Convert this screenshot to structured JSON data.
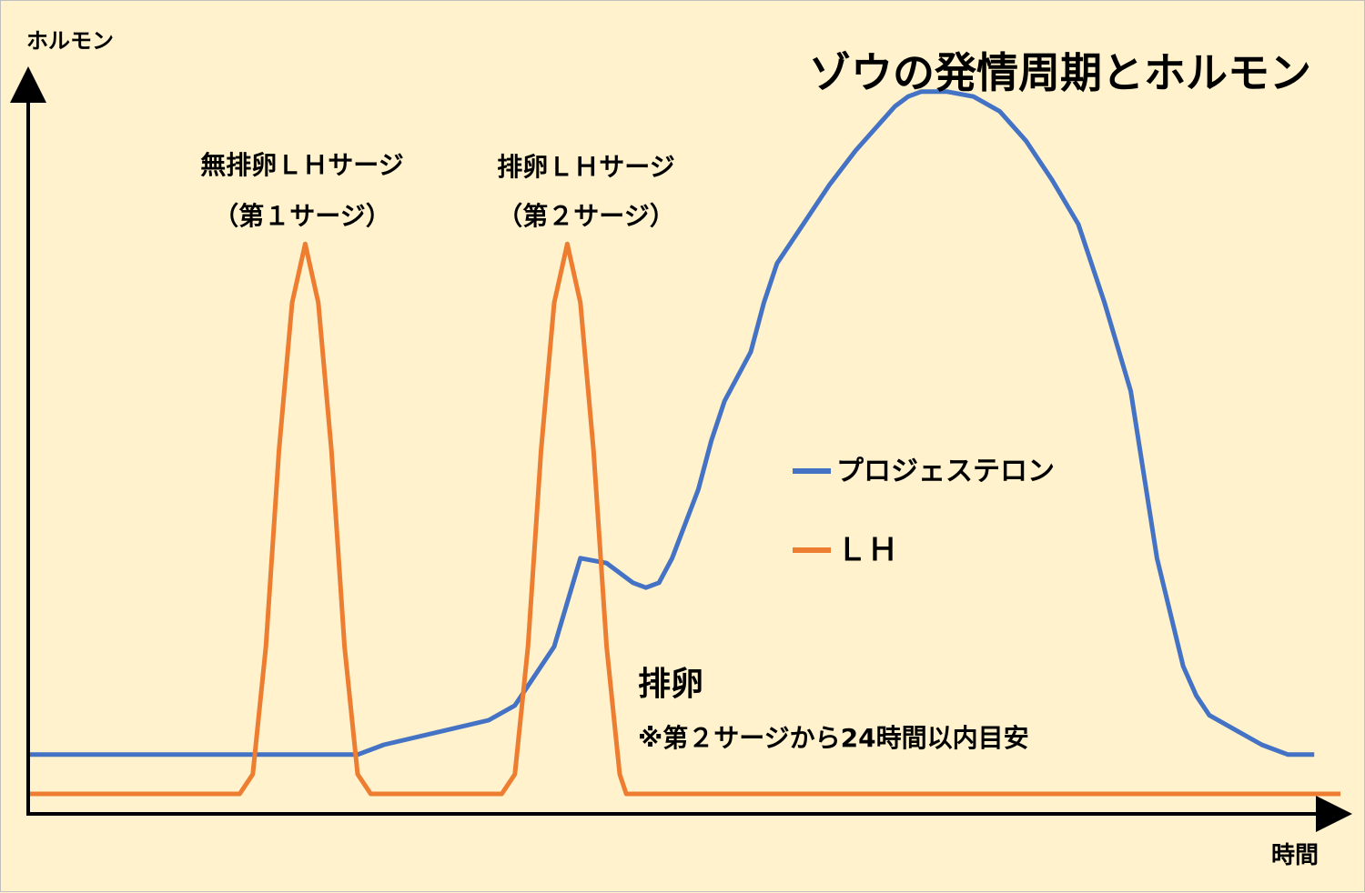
{
  "chart_data": {
    "type": "line",
    "title": "ゾウの発情周期とホルモン",
    "ylabel": "ホルモン",
    "xlabel": "時間",
    "legend": "right",
    "grid": false,
    "series": [
      {
        "name": "プロジェステロン",
        "color": "#4472c4",
        "points": [
          [
            0,
            8
          ],
          [
            25,
            8
          ],
          [
            27,
            10
          ],
          [
            35,
            15
          ],
          [
            37,
            18
          ],
          [
            40,
            30
          ],
          [
            42,
            48
          ],
          [
            44,
            47
          ],
          [
            45,
            45
          ],
          [
            46,
            43
          ],
          [
            47,
            42
          ],
          [
            48,
            43
          ],
          [
            49,
            48
          ],
          [
            50,
            55
          ],
          [
            51,
            62
          ],
          [
            52,
            72
          ],
          [
            53,
            80
          ],
          [
            55,
            90
          ],
          [
            56,
            100
          ],
          [
            57,
            108
          ],
          [
            59,
            116
          ],
          [
            61,
            124
          ],
          [
            63,
            131
          ],
          [
            65,
            137
          ],
          [
            66,
            140
          ],
          [
            67,
            142
          ],
          [
            68,
            143
          ],
          [
            69,
            143
          ],
          [
            70,
            143
          ],
          [
            72,
            142
          ],
          [
            74,
            139
          ],
          [
            76,
            133
          ],
          [
            78,
            125
          ],
          [
            80,
            116
          ],
          [
            82,
            100
          ],
          [
            84,
            82
          ],
          [
            86,
            48
          ],
          [
            88,
            26
          ],
          [
            89,
            20
          ],
          [
            90,
            16
          ],
          [
            92,
            13
          ],
          [
            94,
            10
          ],
          [
            96,
            8
          ],
          [
            98,
            8
          ]
        ]
      },
      {
        "name": "ＬＨ",
        "color": "#ed7d31",
        "points": [
          [
            0,
            0
          ],
          [
            16,
            0
          ],
          [
            17,
            4
          ],
          [
            18,
            30
          ],
          [
            19,
            70
          ],
          [
            20,
            100
          ],
          [
            21,
            112
          ],
          [
            22,
            100
          ],
          [
            23,
            70
          ],
          [
            24,
            30
          ],
          [
            25,
            4
          ],
          [
            26,
            0
          ],
          [
            36,
            0
          ],
          [
            37,
            4
          ],
          [
            38,
            30
          ],
          [
            39,
            70
          ],
          [
            40,
            100
          ],
          [
            41,
            112
          ],
          [
            42,
            100
          ],
          [
            43,
            70
          ],
          [
            44,
            30
          ],
          [
            45,
            4
          ],
          [
            45.5,
            0
          ],
          [
            100,
            0
          ]
        ]
      }
    ],
    "annotations": {
      "surge1_line1": "無排卵ＬＨサージ",
      "surge1_line2": "（第１サージ）",
      "surge2_line1": "排卵ＬＨサージ",
      "surge2_line2": "（第２サージ）",
      "ovulation": "排卵",
      "ovulation_note": "※第２サージから24時間以内目安"
    },
    "annotation_color": "#ff0000"
  }
}
